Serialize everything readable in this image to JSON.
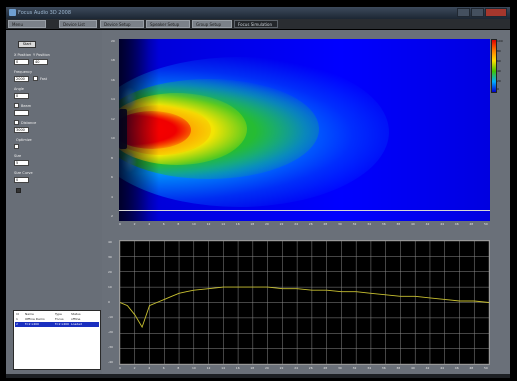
{
  "window": {
    "title": "Focus Audio 3D 2008"
  },
  "tabs": [
    {
      "label": "Menu",
      "active": false
    },
    {
      "label": "Device List",
      "active": false
    },
    {
      "label": "Device Setup",
      "active": false
    },
    {
      "label": "Speaker Setup",
      "active": false
    },
    {
      "label": "Group Setup",
      "active": false
    },
    {
      "label": "Focus Simulation",
      "active": true
    }
  ],
  "left_panel": {
    "button": "Start",
    "fields": [
      {
        "label": "X Position",
        "value": "0"
      },
      {
        "label": "Y Position",
        "value": "40"
      },
      {
        "label": "Frequency",
        "value": "2000"
      },
      {
        "label": "Angle",
        "value": "0"
      },
      {
        "label": "Beam",
        "value": ""
      },
      {
        "label": "Distance",
        "value": "3000"
      },
      {
        "label": "Size",
        "value": "5"
      },
      {
        "label": "Size Curve",
        "value": "0"
      }
    ],
    "checks": [
      {
        "label": "Fast",
        "checked": true
      },
      {
        "label": "Beam",
        "checked": true
      },
      {
        "label": "Distance",
        "checked": true
      },
      {
        "label": "Optimize",
        "checked": true
      }
    ],
    "list": {
      "columns": [
        "Id",
        "Name",
        "Type",
        "Status"
      ],
      "rows": [
        {
          "id": "1",
          "name": "Offline Demo",
          "type": "Focus",
          "status": "offline"
        },
        {
          "id": "2",
          "name": "f=2 x400",
          "type": "f=2 x400",
          "status": "Loaded"
        }
      ]
    }
  },
  "heatmap": {
    "y_ticks": [
      "20",
      "18",
      "16",
      "14",
      "12",
      "10",
      "8",
      "6",
      "4",
      "2"
    ],
    "x_ticks": [
      "0",
      "2",
      "4",
      "6",
      "8",
      "10",
      "12",
      "14",
      "16",
      "18",
      "20",
      "22",
      "24",
      "26",
      "28",
      "30",
      "32",
      "34",
      "36",
      "38",
      "40",
      "42",
      "44",
      "46",
      "48",
      "50"
    ],
    "colorbar_labels": [
      "100",
      "80",
      "60",
      "40",
      "20",
      "0"
    ],
    "colors": {
      "hot": "#e00000",
      "warm": "#ff9000",
      "mid": "#ffe000",
      "cool": "#22b400",
      "cold": "#0000ff"
    }
  },
  "chart_data": {
    "type": "line",
    "x": [
      0,
      1,
      2,
      3,
      4,
      5,
      6,
      7,
      8,
      9,
      10,
      12,
      14,
      16,
      18,
      20,
      22,
      24,
      26,
      28,
      30,
      32,
      34,
      36,
      38,
      40,
      42,
      44,
      46,
      48,
      50
    ],
    "series": [
      {
        "values": [
          0,
          -2,
          -8,
          -16,
          -2,
          0,
          2,
          4,
          6,
          7,
          8,
          9,
          10,
          10,
          10,
          10,
          9,
          9,
          8,
          8,
          7,
          7,
          6,
          5,
          4,
          4,
          3,
          2,
          1,
          1,
          0
        ]
      }
    ],
    "ylim": [
      -40,
      40
    ],
    "xlim": [
      0,
      50
    ],
    "grid": true,
    "x_ticks": [
      "0",
      "2",
      "4",
      "6",
      "8",
      "10",
      "12",
      "14",
      "16",
      "18",
      "20",
      "22",
      "24",
      "26",
      "28",
      "30",
      "32",
      "34",
      "36",
      "38",
      "40",
      "42",
      "44",
      "46",
      "48",
      "50"
    ],
    "y_ticks": [
      "40",
      "30",
      "20",
      "10",
      "0",
      "-10",
      "-20",
      "-30",
      "-40"
    ],
    "line_color": "#c8c030"
  }
}
